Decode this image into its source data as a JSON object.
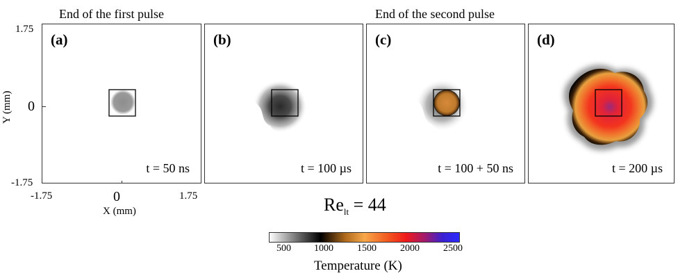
{
  "headers": {
    "first": "End of the first pulse",
    "second": "End of the second pulse"
  },
  "axes": {
    "y_label": "Y (mm)",
    "x_label": "X (mm)",
    "y_ticks": [
      "1.75",
      "0",
      "-1.75"
    ],
    "x_ticks": [
      "-1.75",
      "0",
      "1.75"
    ]
  },
  "panels": [
    {
      "label": "(a)",
      "time": "t = 50 ns"
    },
    {
      "label": "(b)",
      "time": "t = 100 µs"
    },
    {
      "label": "(c)",
      "time": "t = 100 + 50 ns"
    },
    {
      "label": "(d)",
      "time": "t = 200 µs"
    }
  ],
  "reynolds": {
    "main": "Re",
    "sub": "lt",
    "value": " = 44"
  },
  "colorbar": {
    "ticks": [
      "500",
      "1000",
      "1500",
      "2000",
      "2500"
    ],
    "label": "Temperature (K)",
    "colors": [
      "#ffffff",
      "#6c6c6c",
      "#000000",
      "#b06a1c",
      "#f7a84a",
      "#f25b20",
      "#f01a1a",
      "#a01a6c",
      "#3b20d0",
      "#2a2aff"
    ]
  }
}
